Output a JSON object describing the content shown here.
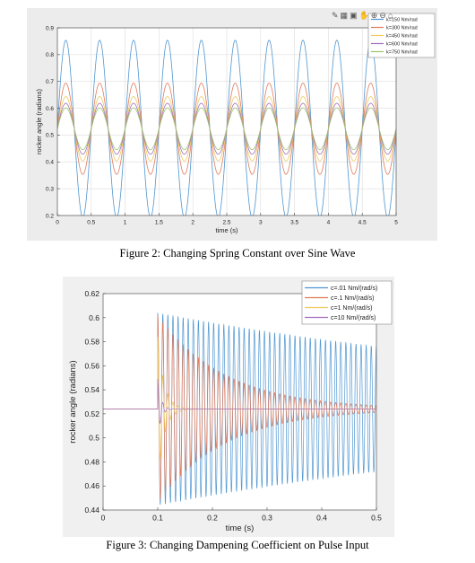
{
  "captions": {
    "fig2": "Figure 2: Changing Spring Constant over Sine Wave",
    "fig3": "Figure 3: Changing Dampening Coefficient on Pulse Input"
  },
  "chart_data": [
    {
      "type": "line",
      "title": "",
      "xlabel": "time (s)",
      "ylabel": "rocker angle (radians)",
      "xlim": [
        0,
        5
      ],
      "ylim": [
        0.2,
        0.9
      ],
      "xticks": [
        0,
        0.5,
        1,
        1.5,
        2,
        2.5,
        3,
        3.5,
        4,
        4.5,
        5
      ],
      "xtick_labels": [
        "0",
        "0.5",
        "1",
        "1.5",
        "2",
        "2.5",
        "3",
        "3.5",
        "4",
        "4.5",
        "5"
      ],
      "yticks": [
        0.2,
        0.3,
        0.4,
        0.5,
        0.6,
        0.7,
        0.8,
        0.9
      ],
      "ytick_labels": [
        "0.2",
        "0.3",
        "0.4",
        "0.5",
        "0.6",
        "0.7",
        "0.8",
        "0.9"
      ],
      "grid": true,
      "legend_position": "top-right",
      "signal": {
        "form": "sine",
        "period": 0.5,
        "center": 0.5236,
        "first_peak_time": 0.125
      },
      "series": [
        {
          "name": "k=150 Nm/rad",
          "color": "#4f96d1",
          "amplitude": 0.33,
          "max": 0.86,
          "min": 0.19
        },
        {
          "name": "k=300 Nm/rad",
          "color": "#e07a59",
          "amplitude": 0.17,
          "max": 0.7,
          "min": 0.35
        },
        {
          "name": "k=450 Nm/rad",
          "color": "#eec95c",
          "amplitude": 0.12,
          "max": 0.65,
          "min": 0.4
        },
        {
          "name": "k=600 Nm/rad",
          "color": "#a36fbf",
          "amplitude": 0.095,
          "max": 0.62,
          "min": 0.43
        },
        {
          "name": "k=750 Nm/rad",
          "color": "#9cc56e",
          "amplitude": 0.078,
          "max": 0.6,
          "min": 0.445
        }
      ]
    },
    {
      "type": "line",
      "title": "",
      "xlabel": "time (s)",
      "ylabel": "rocker angle (radians)",
      "xlim": [
        0,
        0.5
      ],
      "ylim": [
        0.44,
        0.62
      ],
      "xticks": [
        0,
        0.1,
        0.2,
        0.3,
        0.4,
        0.5
      ],
      "xtick_labels": [
        "0",
        "0.1",
        "0.2",
        "0.3",
        "0.4",
        "0.5"
      ],
      "yticks": [
        0.44,
        0.46,
        0.48,
        0.5,
        0.52,
        0.54,
        0.56,
        0.58,
        0.6,
        0.62
      ],
      "ytick_labels": [
        "0.44",
        "0.46",
        "0.48",
        "0.5",
        "0.52",
        "0.54",
        "0.56",
        "0.58",
        "0.6",
        "0.62"
      ],
      "grid": false,
      "legend_position": "top-right",
      "signal": {
        "form": "pulse",
        "pulse_time": 0.1,
        "baseline": 0.524,
        "oscillation_period": 0.0093
      },
      "series": [
        {
          "name": "c=.01 Nm/(rad/s)",
          "color": "#4f96d1",
          "initial_amplitude": 0.08,
          "amplitude_at_0_5": 0.052
        },
        {
          "name": "c=.1 Nm/(rad/s)",
          "color": "#e07a59",
          "initial_amplitude": 0.078,
          "amplitude_at_0_5": 0.003
        },
        {
          "name": "c=1 Nm/(rad/s)",
          "color": "#eec95c",
          "initial_amplitude": 0.06,
          "amplitude_at_0_5": 0.0
        },
        {
          "name": "c=10 Nm/(rad/s)",
          "color": "#a36fbf",
          "initial_amplitude": 0.025,
          "amplitude_at_0_5": 0.0
        }
      ]
    }
  ]
}
